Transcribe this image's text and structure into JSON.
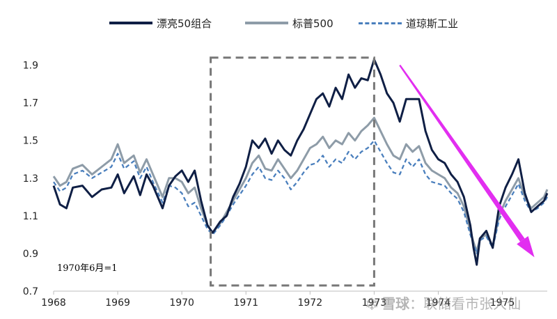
{
  "chart_data": {
    "type": "line",
    "title": "",
    "xlabel": "",
    "ylabel": "",
    "xlim": [
      1968,
      1975.7
    ],
    "ylim": [
      0.7,
      1.95
    ],
    "x_ticks": [
      1968,
      1969,
      1970,
      1971,
      1972,
      1973,
      1974,
      1975
    ],
    "y_ticks": [
      0.7,
      0.9,
      1.1,
      1.3,
      1.5,
      1.7,
      1.9
    ],
    "x_tick_labels": [
      "1968",
      "1969",
      "1970",
      "1971",
      "1972",
      "1973",
      "1974",
      "1975"
    ],
    "y_tick_labels": [
      "0.7",
      "0.9",
      "1.1",
      "1.3",
      "1.5",
      "1.7",
      "1.9"
    ],
    "grid": false,
    "legend_position": "top",
    "series": [
      {
        "name": "漂亮50组合",
        "color": "#0f1f45",
        "style": "solid",
        "points": [
          [
            1968.0,
            1.26
          ],
          [
            1968.1,
            1.16
          ],
          [
            1968.2,
            1.14
          ],
          [
            1968.3,
            1.25
          ],
          [
            1968.45,
            1.26
          ],
          [
            1968.6,
            1.2
          ],
          [
            1968.75,
            1.24
          ],
          [
            1968.9,
            1.25
          ],
          [
            1969.0,
            1.32
          ],
          [
            1969.1,
            1.22
          ],
          [
            1969.25,
            1.31
          ],
          [
            1969.35,
            1.21
          ],
          [
            1969.45,
            1.32
          ],
          [
            1969.55,
            1.26
          ],
          [
            1969.7,
            1.14
          ],
          [
            1969.8,
            1.26
          ],
          [
            1969.9,
            1.31
          ],
          [
            1970.0,
            1.34
          ],
          [
            1970.1,
            1.28
          ],
          [
            1970.2,
            1.34
          ],
          [
            1970.3,
            1.18
          ],
          [
            1970.4,
            1.05
          ],
          [
            1970.48,
            1.01
          ],
          [
            1970.6,
            1.07
          ],
          [
            1970.7,
            1.1
          ],
          [
            1970.8,
            1.2
          ],
          [
            1970.9,
            1.27
          ],
          [
            1971.0,
            1.36
          ],
          [
            1971.1,
            1.5
          ],
          [
            1971.2,
            1.46
          ],
          [
            1971.3,
            1.51
          ],
          [
            1971.4,
            1.43
          ],
          [
            1971.5,
            1.5
          ],
          [
            1971.6,
            1.45
          ],
          [
            1971.7,
            1.42
          ],
          [
            1971.8,
            1.5
          ],
          [
            1971.9,
            1.56
          ],
          [
            1972.0,
            1.64
          ],
          [
            1972.1,
            1.72
          ],
          [
            1972.2,
            1.75
          ],
          [
            1972.3,
            1.68
          ],
          [
            1972.4,
            1.78
          ],
          [
            1972.5,
            1.72
          ],
          [
            1972.6,
            1.85
          ],
          [
            1972.7,
            1.78
          ],
          [
            1972.8,
            1.83
          ],
          [
            1972.9,
            1.82
          ],
          [
            1973.0,
            1.93
          ],
          [
            1973.1,
            1.85
          ],
          [
            1973.2,
            1.75
          ],
          [
            1973.3,
            1.7
          ],
          [
            1973.4,
            1.6
          ],
          [
            1973.5,
            1.72
          ],
          [
            1973.6,
            1.72
          ],
          [
            1973.7,
            1.72
          ],
          [
            1973.8,
            1.55
          ],
          [
            1973.9,
            1.45
          ],
          [
            1974.0,
            1.4
          ],
          [
            1974.1,
            1.38
          ],
          [
            1974.2,
            1.32
          ],
          [
            1974.3,
            1.28
          ],
          [
            1974.4,
            1.2
          ],
          [
            1974.5,
            1.05
          ],
          [
            1974.55,
            0.93
          ],
          [
            1974.6,
            0.84
          ],
          [
            1974.65,
            0.98
          ],
          [
            1974.75,
            1.02
          ],
          [
            1974.85,
            0.93
          ],
          [
            1974.95,
            1.15
          ],
          [
            1975.05,
            1.25
          ],
          [
            1975.15,
            1.32
          ],
          [
            1975.25,
            1.4
          ],
          [
            1975.35,
            1.22
          ],
          [
            1975.45,
            1.12
          ],
          [
            1975.55,
            1.15
          ],
          [
            1975.65,
            1.18
          ],
          [
            1975.7,
            1.22
          ]
        ]
      },
      {
        "name": "标普500",
        "color": "#8e9ca8",
        "style": "solid",
        "points": [
          [
            1968.0,
            1.31
          ],
          [
            1968.1,
            1.26
          ],
          [
            1968.2,
            1.28
          ],
          [
            1968.3,
            1.35
          ],
          [
            1968.45,
            1.37
          ],
          [
            1968.6,
            1.32
          ],
          [
            1968.75,
            1.36
          ],
          [
            1968.9,
            1.4
          ],
          [
            1969.0,
            1.48
          ],
          [
            1969.1,
            1.38
          ],
          [
            1969.25,
            1.42
          ],
          [
            1969.35,
            1.33
          ],
          [
            1969.45,
            1.4
          ],
          [
            1969.55,
            1.32
          ],
          [
            1969.7,
            1.2
          ],
          [
            1969.8,
            1.3
          ],
          [
            1969.9,
            1.3
          ],
          [
            1970.0,
            1.28
          ],
          [
            1970.1,
            1.22
          ],
          [
            1970.2,
            1.25
          ],
          [
            1970.3,
            1.14
          ],
          [
            1970.4,
            1.05
          ],
          [
            1970.48,
            1.01
          ],
          [
            1970.6,
            1.06
          ],
          [
            1970.7,
            1.12
          ],
          [
            1970.8,
            1.18
          ],
          [
            1970.9,
            1.24
          ],
          [
            1971.0,
            1.3
          ],
          [
            1971.1,
            1.38
          ],
          [
            1971.2,
            1.42
          ],
          [
            1971.3,
            1.35
          ],
          [
            1971.4,
            1.34
          ],
          [
            1971.5,
            1.4
          ],
          [
            1971.6,
            1.35
          ],
          [
            1971.7,
            1.3
          ],
          [
            1971.8,
            1.34
          ],
          [
            1971.9,
            1.4
          ],
          [
            1972.0,
            1.46
          ],
          [
            1972.1,
            1.48
          ],
          [
            1972.2,
            1.52
          ],
          [
            1972.3,
            1.46
          ],
          [
            1972.4,
            1.5
          ],
          [
            1972.5,
            1.48
          ],
          [
            1972.6,
            1.54
          ],
          [
            1972.7,
            1.5
          ],
          [
            1972.8,
            1.55
          ],
          [
            1972.9,
            1.58
          ],
          [
            1973.0,
            1.62
          ],
          [
            1973.1,
            1.55
          ],
          [
            1973.2,
            1.48
          ],
          [
            1973.3,
            1.42
          ],
          [
            1973.4,
            1.4
          ],
          [
            1973.5,
            1.48
          ],
          [
            1973.6,
            1.44
          ],
          [
            1973.7,
            1.47
          ],
          [
            1973.8,
            1.38
          ],
          [
            1973.9,
            1.34
          ],
          [
            1974.0,
            1.32
          ],
          [
            1974.1,
            1.3
          ],
          [
            1974.2,
            1.25
          ],
          [
            1974.3,
            1.22
          ],
          [
            1974.4,
            1.15
          ],
          [
            1974.5,
            1.02
          ],
          [
            1974.55,
            0.96
          ],
          [
            1974.6,
            0.91
          ],
          [
            1974.65,
            0.98
          ],
          [
            1974.75,
            1.0
          ],
          [
            1974.85,
            0.94
          ],
          [
            1974.95,
            1.1
          ],
          [
            1975.05,
            1.18
          ],
          [
            1975.15,
            1.24
          ],
          [
            1975.25,
            1.3
          ],
          [
            1975.35,
            1.2
          ],
          [
            1975.45,
            1.14
          ],
          [
            1975.55,
            1.17
          ],
          [
            1975.65,
            1.2
          ],
          [
            1975.7,
            1.24
          ]
        ]
      },
      {
        "name": "道琼斯工业",
        "color": "#4a7fbd",
        "style": "dashed",
        "points": [
          [
            1968.0,
            1.28
          ],
          [
            1968.1,
            1.23
          ],
          [
            1968.2,
            1.25
          ],
          [
            1968.3,
            1.32
          ],
          [
            1968.45,
            1.34
          ],
          [
            1968.6,
            1.3
          ],
          [
            1968.75,
            1.33
          ],
          [
            1968.9,
            1.36
          ],
          [
            1969.0,
            1.43
          ],
          [
            1969.1,
            1.35
          ],
          [
            1969.25,
            1.39
          ],
          [
            1969.35,
            1.3
          ],
          [
            1969.45,
            1.36
          ],
          [
            1969.55,
            1.28
          ],
          [
            1969.7,
            1.17
          ],
          [
            1969.8,
            1.26
          ],
          [
            1969.9,
            1.25
          ],
          [
            1970.0,
            1.22
          ],
          [
            1970.1,
            1.15
          ],
          [
            1970.2,
            1.17
          ],
          [
            1970.3,
            1.1
          ],
          [
            1970.4,
            1.03
          ],
          [
            1970.48,
            1.0
          ],
          [
            1970.6,
            1.05
          ],
          [
            1970.7,
            1.1
          ],
          [
            1970.8,
            1.16
          ],
          [
            1970.9,
            1.21
          ],
          [
            1971.0,
            1.26
          ],
          [
            1971.1,
            1.32
          ],
          [
            1971.2,
            1.36
          ],
          [
            1971.3,
            1.3
          ],
          [
            1971.4,
            1.29
          ],
          [
            1971.5,
            1.34
          ],
          [
            1971.6,
            1.3
          ],
          [
            1971.7,
            1.24
          ],
          [
            1971.8,
            1.28
          ],
          [
            1971.9,
            1.33
          ],
          [
            1972.0,
            1.37
          ],
          [
            1972.1,
            1.38
          ],
          [
            1972.2,
            1.42
          ],
          [
            1972.3,
            1.36
          ],
          [
            1972.4,
            1.4
          ],
          [
            1972.5,
            1.38
          ],
          [
            1972.6,
            1.44
          ],
          [
            1972.7,
            1.4
          ],
          [
            1972.8,
            1.44
          ],
          [
            1972.9,
            1.46
          ],
          [
            1973.0,
            1.5
          ],
          [
            1973.1,
            1.44
          ],
          [
            1973.2,
            1.38
          ],
          [
            1973.3,
            1.33
          ],
          [
            1973.4,
            1.32
          ],
          [
            1973.5,
            1.4
          ],
          [
            1973.6,
            1.36
          ],
          [
            1973.7,
            1.4
          ],
          [
            1973.8,
            1.32
          ],
          [
            1973.9,
            1.28
          ],
          [
            1974.0,
            1.27
          ],
          [
            1974.1,
            1.26
          ],
          [
            1974.2,
            1.22
          ],
          [
            1974.3,
            1.19
          ],
          [
            1974.4,
            1.12
          ],
          [
            1974.5,
            1.0
          ],
          [
            1974.55,
            0.95
          ],
          [
            1974.6,
            0.9
          ],
          [
            1974.65,
            0.97
          ],
          [
            1974.75,
            0.99
          ],
          [
            1974.85,
            0.93
          ],
          [
            1974.95,
            1.08
          ],
          [
            1975.05,
            1.15
          ],
          [
            1975.15,
            1.21
          ],
          [
            1975.25,
            1.27
          ],
          [
            1975.35,
            1.18
          ],
          [
            1975.45,
            1.12
          ],
          [
            1975.55,
            1.14
          ],
          [
            1975.65,
            1.17
          ],
          [
            1975.7,
            1.2
          ]
        ]
      }
    ],
    "highlight_box": {
      "x_range": [
        1970.45,
        1973.0
      ],
      "y_range": [
        0.73,
        1.94
      ]
    },
    "trend_arrow": {
      "from": [
        1973.4,
        1.9
      ],
      "to": [
        1975.5,
        0.88
      ],
      "color": "#e22ef0"
    },
    "annotation_label": "1970年6月=1"
  },
  "watermark": {
    "brand": "雪球",
    "text": "：联储看市张大仙"
  }
}
